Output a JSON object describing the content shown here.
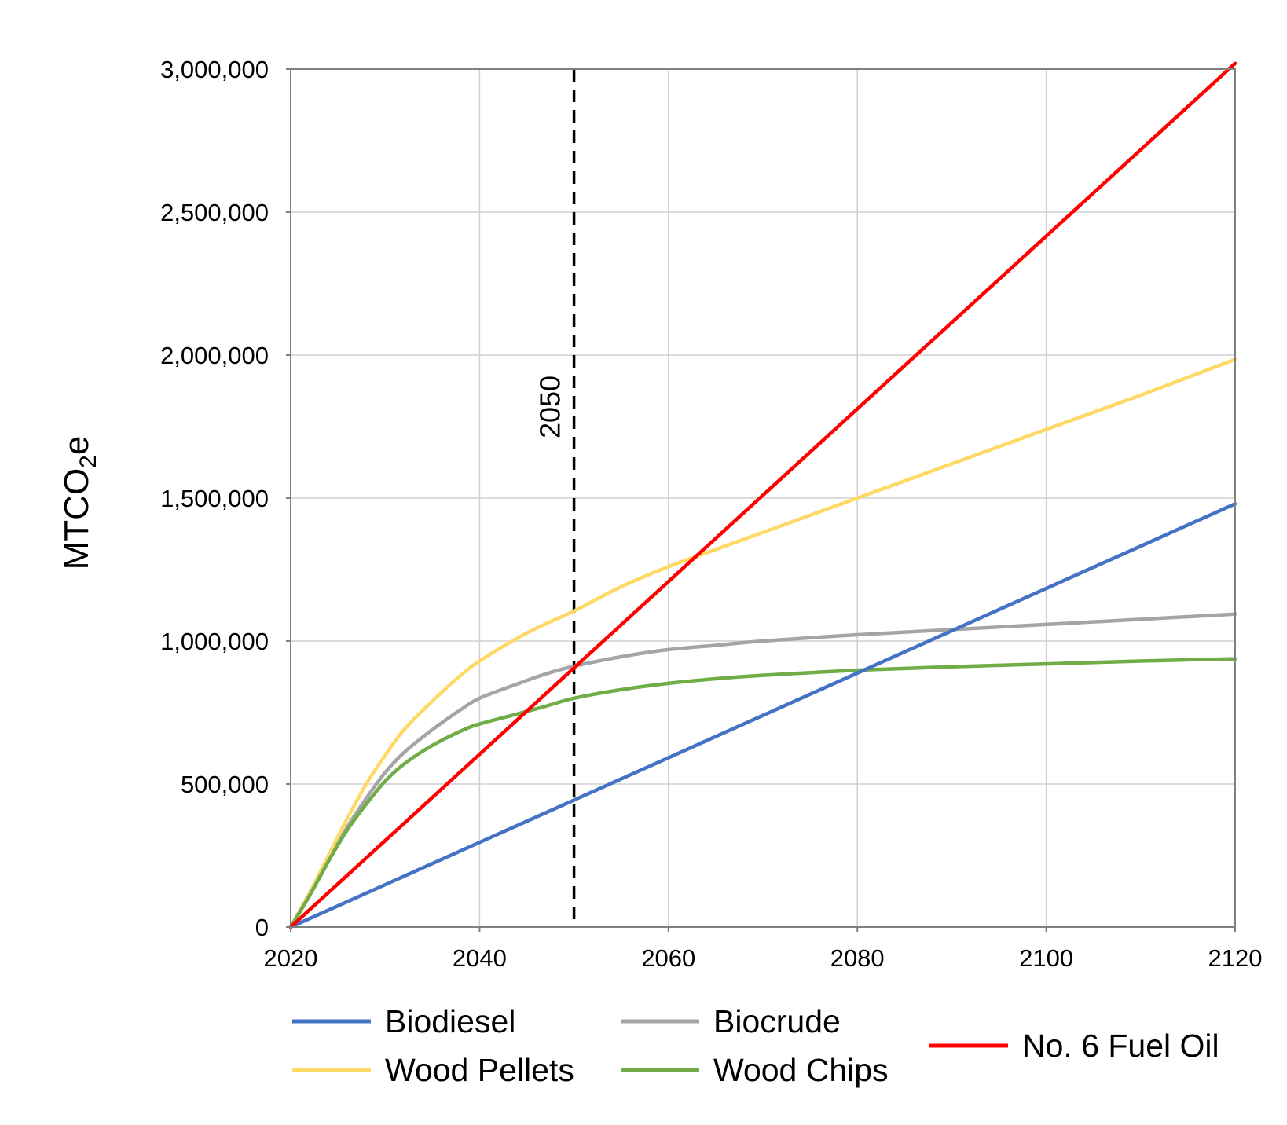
{
  "chart_data": {
    "type": "line",
    "title": "",
    "xlabel": "",
    "ylabel": "MTCO",
    "ylabel_subscript": "2",
    "ylabel_suffix": "e",
    "xlim": [
      2020,
      2120
    ],
    "ylim": [
      0,
      3000000
    ],
    "xticks": [
      2020,
      2040,
      2060,
      2080,
      2100,
      2120
    ],
    "xtick_labels": [
      "2020",
      "2040",
      "2060",
      "2080",
      "2100",
      "2120"
    ],
    "yticks": [
      0,
      500000,
      1000000,
      1500000,
      2000000,
      2500000,
      3000000
    ],
    "ytick_labels": [
      "0",
      "500,000",
      "1,000,000",
      "1,500,000",
      "2,000,000",
      "2,500,000",
      "3,000,000"
    ],
    "grid": true,
    "legend_position": "bottom",
    "reference_line": {
      "x": 2050,
      "label": "2050",
      "style": "dashed",
      "color": "#000000"
    },
    "series": [
      {
        "name": "Biodiesel",
        "color": "#4472C4",
        "x": [
          2020,
          2030,
          2040,
          2050,
          2060,
          2070,
          2080,
          2090,
          2100,
          2110,
          2120
        ],
        "y": [
          0,
          148000,
          296000,
          444000,
          592000,
          740000,
          888000,
          1036000,
          1184000,
          1332000,
          1480000
        ]
      },
      {
        "name": "Biocrude",
        "color": "#A5A5A5",
        "x": [
          2020,
          2022,
          2024,
          2026,
          2028,
          2030,
          2032,
          2035,
          2038,
          2040,
          2044,
          2047,
          2050,
          2055,
          2060,
          2065,
          2070,
          2080,
          2090,
          2100,
          2110,
          2120
        ],
        "y": [
          0,
          110000,
          230000,
          350000,
          450000,
          540000,
          610000,
          690000,
          760000,
          800000,
          850000,
          885000,
          912000,
          945000,
          970000,
          985000,
          1000000,
          1022000,
          1040000,
          1058000,
          1076000,
          1094000
        ]
      },
      {
        "name": "No. 6 Fuel Oil",
        "color": "#FF0000",
        "x": [
          2020,
          2030,
          2040,
          2050,
          2060,
          2070,
          2080,
          2090,
          2100,
          2110,
          2120
        ],
        "y": [
          0,
          302000,
          604000,
          906000,
          1208000,
          1510000,
          1812000,
          2114000,
          2416000,
          2718000,
          3020000
        ]
      },
      {
        "name": "Wood Pellets",
        "color": "#FFD966",
        "x": [
          2020,
          2022,
          2024,
          2026,
          2028,
          2030,
          2032,
          2035,
          2038,
          2040,
          2044,
          2047,
          2050,
          2055,
          2060,
          2065,
          2070,
          2080,
          2090,
          2100,
          2110,
          2120
        ],
        "y": [
          0,
          120000,
          250000,
          380000,
          500000,
          600000,
          690000,
          790000,
          880000,
          930000,
          1010000,
          1060000,
          1105000,
          1190000,
          1260000,
          1320000,
          1380000,
          1500000,
          1620000,
          1740000,
          1860000,
          1985000
        ]
      },
      {
        "name": "Wood Chips",
        "color": "#70AD47",
        "x": [
          2020,
          2022,
          2024,
          2026,
          2028,
          2030,
          2032,
          2035,
          2038,
          2040,
          2044,
          2047,
          2050,
          2055,
          2060,
          2065,
          2070,
          2080,
          2090,
          2100,
          2110,
          2120
        ],
        "y": [
          0,
          110000,
          230000,
          340000,
          430000,
          510000,
          570000,
          635000,
          685000,
          710000,
          745000,
          772000,
          800000,
          830000,
          852000,
          868000,
          880000,
          898000,
          910000,
          920000,
          930000,
          938000
        ]
      }
    ],
    "legend_rows": [
      [
        "Biodiesel",
        "Biocrude",
        "No. 6 Fuel Oil"
      ],
      [
        "Wood Pellets",
        "Wood Chips"
      ]
    ]
  }
}
